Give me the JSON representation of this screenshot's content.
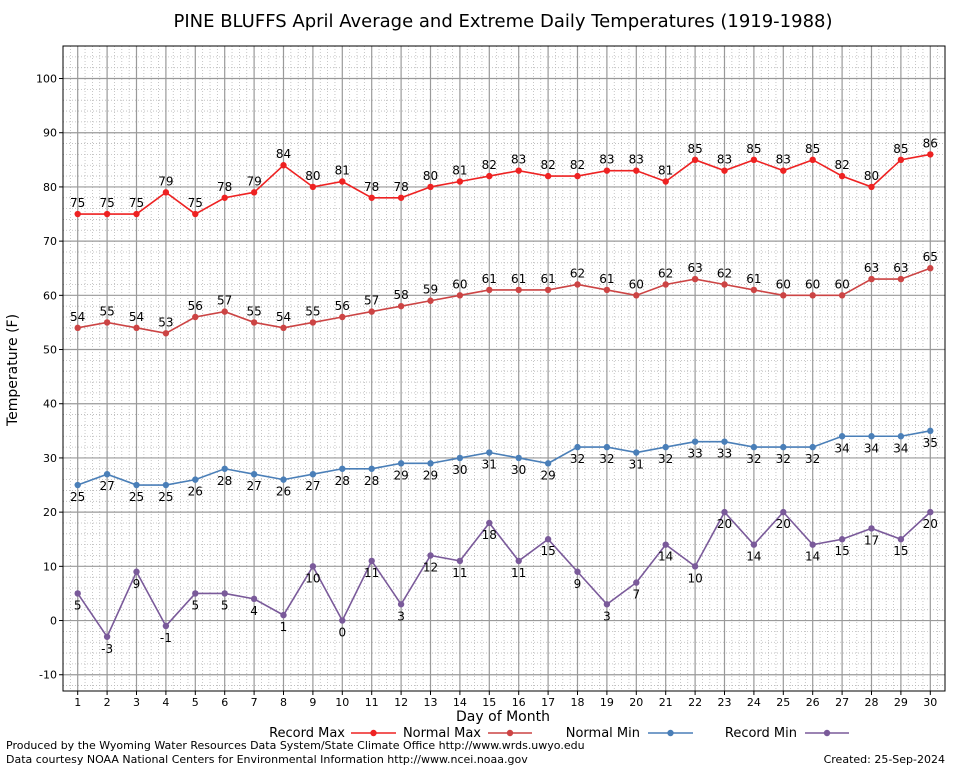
{
  "chart_data": {
    "type": "line",
    "title": "PINE BLUFFS April Average and Extreme Daily Temperatures (1919-1988)",
    "xlabel": "Day of Month",
    "ylabel": "Temperature (F)",
    "x": [
      1,
      2,
      3,
      4,
      5,
      6,
      7,
      8,
      9,
      10,
      11,
      12,
      13,
      14,
      15,
      16,
      17,
      18,
      19,
      20,
      21,
      22,
      23,
      24,
      25,
      26,
      27,
      28,
      29,
      30
    ],
    "xlim": [
      0.5,
      30.5
    ],
    "ylim": [
      -13,
      106
    ],
    "yticks": [
      -10,
      0,
      10,
      20,
      30,
      40,
      50,
      60,
      70,
      80,
      90,
      100
    ],
    "grid": true,
    "legend_position": "bottom",
    "series": [
      {
        "name": "Record Max",
        "color": "#ee2222",
        "label_position": "above",
        "values": [
          75,
          75,
          75,
          79,
          75,
          78,
          79,
          84,
          80,
          81,
          78,
          78,
          80,
          81,
          82,
          83,
          82,
          82,
          83,
          83,
          81,
          85,
          83,
          85,
          83,
          85,
          82,
          80,
          85,
          86
        ]
      },
      {
        "name": "Normal Max",
        "color": "#cc4444",
        "label_position": "above",
        "values": [
          54,
          55,
          54,
          53,
          56,
          57,
          55,
          54,
          55,
          56,
          57,
          58,
          59,
          60,
          61,
          61,
          61,
          62,
          61,
          60,
          62,
          63,
          62,
          61,
          60,
          60,
          60,
          63,
          63,
          65
        ]
      },
      {
        "name": "Normal Min",
        "color": "#4a7fb8",
        "label_position": "below",
        "values": [
          25,
          27,
          25,
          25,
          26,
          28,
          27,
          26,
          27,
          28,
          28,
          29,
          29,
          30,
          31,
          30,
          29,
          32,
          32,
          31,
          32,
          33,
          33,
          32,
          32,
          32,
          34,
          34,
          34,
          35
        ]
      },
      {
        "name": "Record Min",
        "color": "#7a5a9a",
        "label_position": "below",
        "values": [
          5,
          -3,
          9,
          -1,
          5,
          5,
          4,
          1,
          10,
          0,
          11,
          3,
          12,
          11,
          18,
          11,
          15,
          9,
          3,
          7,
          14,
          10,
          20,
          14,
          20,
          14,
          15,
          17,
          15,
          20
        ]
      }
    ]
  },
  "footer": {
    "produced_by": "Produced by the Wyoming Water Resources Data System/State Climate Office http://www.wrds.uwyo.edu",
    "data_courtesy": "Data courtesy NOAA National Centers for Environmental Information http://www.ncei.noaa.gov",
    "created": "Created:  25-Sep-2024"
  }
}
